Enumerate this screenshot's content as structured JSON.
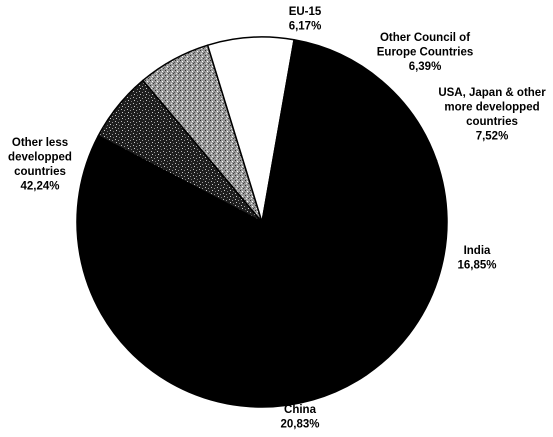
{
  "chart_data": {
    "type": "pie",
    "title": "",
    "slices": [
      {
        "label": [
          "EU-15"
        ],
        "value_label": "6,17%",
        "value": 6.17,
        "fill": "#232323",
        "pattern": "stipple"
      },
      {
        "label": [
          "Other Council of",
          "Europe Countries"
        ],
        "value_label": "6,39%",
        "value": 6.39,
        "fill": "#8a8a8a",
        "pattern": "stipple"
      },
      {
        "label": [
          "USA, Japan & other",
          "more developped",
          "countries"
        ],
        "value_label": "7,52%",
        "value": 7.52,
        "fill": "#ffffff",
        "pattern": "none"
      },
      {
        "label": [
          "India"
        ],
        "value_label": "16,85%",
        "value": 16.85,
        "fill": "#000000",
        "pattern": "none"
      },
      {
        "label": [
          "China"
        ],
        "value_label": "20,83%",
        "value": 20.83,
        "fill": "#000000",
        "pattern": "none"
      },
      {
        "label": [
          "Other less",
          "developped",
          "countries"
        ],
        "value_label": "42,24%",
        "value": 42.24,
        "fill": "#000000",
        "pattern": "none"
      }
    ],
    "stroke_color": "#000000",
    "background": "#ffffff"
  }
}
